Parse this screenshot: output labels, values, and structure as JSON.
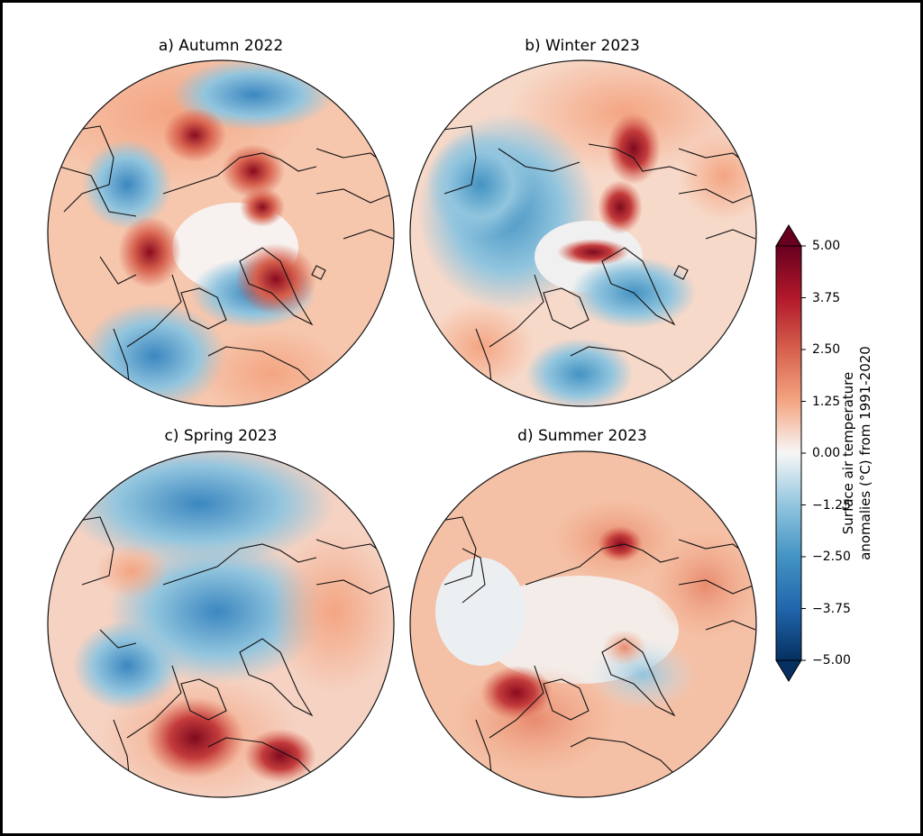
{
  "panels": [
    {
      "title": "a) Autumn 2022"
    },
    {
      "title": "b) Winter 2023"
    },
    {
      "title": "c) Spring 2023"
    },
    {
      "title": "d) Summer 2023"
    }
  ],
  "colorbar": {
    "label_line1": "Surface air temperature",
    "label_line2": "anomalies (°C) from 1991-2020",
    "ticks": [
      "5.00",
      "3.75",
      "2.50",
      "1.25",
      "0.00",
      "−1.25",
      "−2.50",
      "−3.75",
      "−5.00"
    ],
    "colors": {
      "max": "#67001f",
      "warm": "#d6604d",
      "mid": "#f7f7f7",
      "cool": "#4393c3",
      "min": "#053061"
    }
  }
}
